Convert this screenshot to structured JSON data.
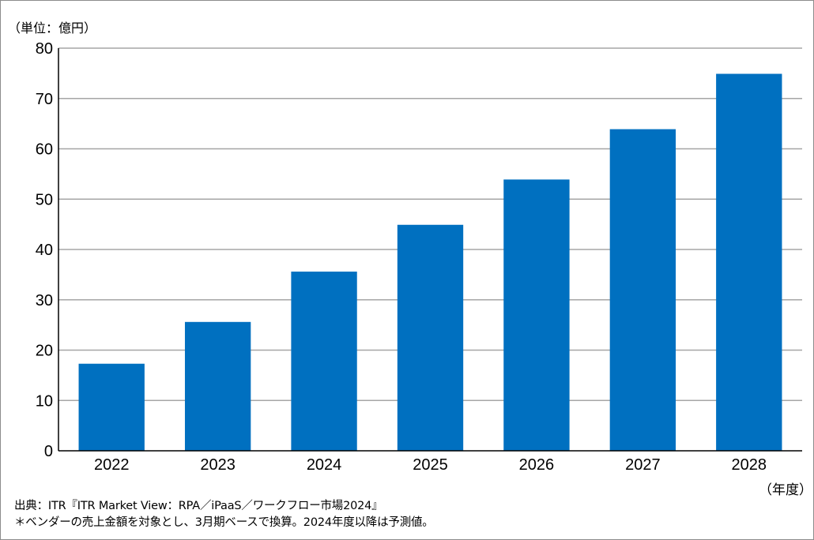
{
  "chart_data": {
    "type": "bar",
    "categories": [
      "2022",
      "2023",
      "2024",
      "2025",
      "2026",
      "2027",
      "2028"
    ],
    "values": [
      17.3,
      25.6,
      35.6,
      44.9,
      53.9,
      63.9,
      74.9
    ],
    "ylim": [
      0,
      80
    ],
    "yticks": [
      0,
      10,
      20,
      30,
      40,
      50,
      60,
      70,
      80
    ],
    "grid": true,
    "bar_color": "#0070c0",
    "gridline_color": "#a6a6a6",
    "y_unit_label": "（単位：億円）",
    "x_unit_label": "（年度）"
  },
  "notes": {
    "source": "出典：ITR『ITR Market View：RPA／iPaaS／ワークフロー市場2024』",
    "remark": "＊ベンダーの売上金額を対象とし、3月期ベースで換算。2024年度以降は予測値。"
  }
}
